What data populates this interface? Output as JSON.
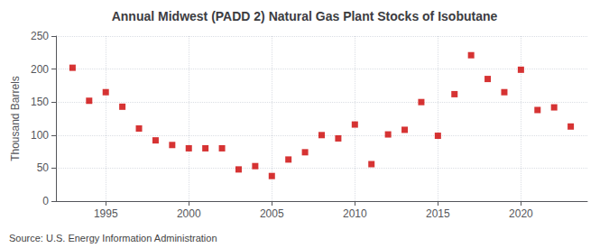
{
  "chart_data": {
    "type": "scatter",
    "title": "Annual Midwest (PADD 2) Natural Gas Plant Stocks of Isobutane",
    "ylabel": "Thousand Barrels",
    "source": "Source: U.S. Energy Information Administration",
    "x": [
      1993,
      1994,
      1995,
      1996,
      1997,
      1998,
      1999,
      2000,
      2001,
      2002,
      2003,
      2004,
      2005,
      2006,
      2007,
      2008,
      2009,
      2010,
      2011,
      2012,
      2013,
      2014,
      2015,
      2016,
      2017,
      2018,
      2019,
      2020,
      2021,
      2022,
      2023
    ],
    "values": [
      202,
      152,
      165,
      143,
      110,
      92,
      85,
      80,
      80,
      80,
      48,
      53,
      38,
      63,
      74,
      100,
      95,
      116,
      56,
      101,
      108,
      150,
      99,
      162,
      221,
      185,
      165,
      199,
      138,
      142,
      113
    ],
    "color": "#cc0000",
    "marker": "square",
    "xlim": [
      1992,
      2024
    ],
    "xticks": [
      1995,
      2000,
      2005,
      2010,
      2015,
      2020
    ],
    "ylim": [
      0,
      250
    ],
    "yticks": [
      0,
      50,
      100,
      150,
      200,
      250
    ],
    "grid": true
  }
}
